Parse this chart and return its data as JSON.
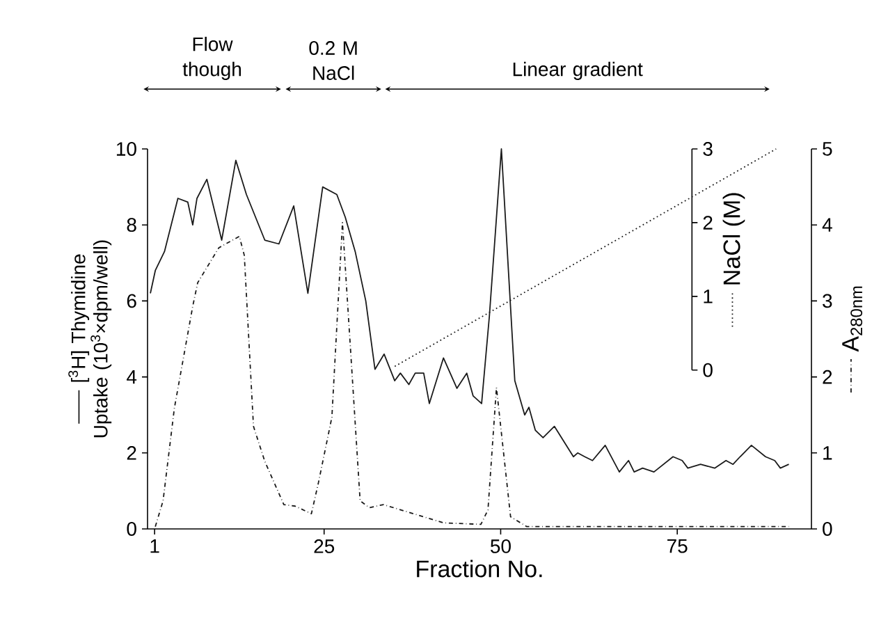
{
  "chart_data": {
    "type": "line",
    "xlabel": "Fraction No.",
    "ylabel": "[$^{3}$H] Thymidine Uptake (10$^{3}$×dpm/well)",
    "y2label": "NaCl (M)",
    "y3label": "A$_{280nm}$",
    "xlim": [
      0,
      94
    ],
    "xticks": [
      1,
      25,
      50,
      75
    ],
    "ylim": [
      0,
      10
    ],
    "yticks": [
      0,
      2,
      4,
      6,
      8,
      10
    ],
    "y2lim": [
      0,
      3
    ],
    "y2ticks": [
      0,
      1,
      2,
      3
    ],
    "y3lim": [
      0,
      5
    ],
    "y3ticks": [
      0,
      1,
      2,
      3,
      4,
      5
    ],
    "marker": "none",
    "annotations": [
      "Flow though",
      "0.2 M NaCl",
      "Linear gradient"
    ],
    "series": [
      {
        "axis": "y",
        "color": "#1a1a1a",
        "line_style": "solid",
        "x": [
          0.4,
          1.1,
          2.4,
          4.3,
          5.7,
          6.4,
          7.0,
          8.4,
          10.5,
          12.5,
          14.0,
          16.6,
          18.6,
          20.7,
          22.7,
          24.8,
          26.8,
          28.0,
          29.4,
          30.9,
          32.2,
          33.5,
          35.0,
          35.8,
          37.0,
          37.9,
          39.1,
          39.9,
          41.9,
          43.8,
          45.2,
          46.1,
          47.3,
          48.4,
          50.1,
          52.0,
          53.4,
          54.0,
          54.9,
          56.0,
          57.6,
          60.3,
          60.9,
          61.9,
          63.0,
          64.8,
          66.8,
          68.1,
          68.9,
          70.1,
          71.7,
          74.4,
          75.7,
          76.5,
          78.3,
          80.3,
          81.9,
          82.9,
          83.9,
          85.5,
          87.5,
          88.8,
          89.6,
          90.8
        ],
        "values": [
          6.2,
          6.8,
          7.3,
          8.7,
          8.6,
          8.0,
          8.7,
          9.2,
          7.6,
          9.7,
          8.8,
          7.6,
          7.5,
          8.5,
          6.2,
          9.0,
          8.8,
          8.2,
          7.3,
          6.0,
          4.2,
          4.6,
          3.9,
          4.1,
          3.8,
          4.1,
          4.1,
          3.3,
          4.5,
          3.7,
          4.1,
          3.5,
          3.3,
          5.6,
          10.0,
          3.9,
          3.0,
          3.2,
          2.6,
          2.4,
          2.7,
          1.9,
          2.0,
          1.9,
          1.8,
          2.2,
          1.5,
          1.8,
          1.5,
          1.6,
          1.5,
          1.9,
          1.8,
          1.6,
          1.7,
          1.6,
          1.8,
          1.7,
          1.9,
          2.2,
          1.9,
          1.8,
          1.6,
          1.7
        ]
      },
      {
        "axis": "y2",
        "color": "#1a1a1a",
        "line_style": "dotted",
        "x": [
          35.0,
          89.0
        ],
        "values": [
          0.05,
          3.0
        ]
      },
      {
        "axis": "y3",
        "color": "#1a1a1a",
        "line_style": "dashdot",
        "x": [
          1.1,
          2.2,
          3.8,
          6.4,
          7.1,
          10.1,
          13.0,
          13.7,
          15.0,
          16.6,
          19.3,
          20.9,
          23.2,
          24.2,
          26.1,
          27.6,
          30.1,
          31.4,
          33.4,
          41.9,
          47.2,
          48.2,
          49.4,
          51.4,
          53.7,
          90.8
        ],
        "values": [
          0.03,
          0.37,
          1.59,
          2.93,
          3.24,
          3.7,
          3.85,
          3.6,
          1.35,
          0.89,
          0.32,
          0.3,
          0.2,
          0.61,
          1.47,
          4.03,
          0.37,
          0.28,
          0.32,
          0.08,
          0.06,
          0.25,
          1.86,
          0.16,
          0.03,
          0.03
        ]
      }
    ]
  }
}
